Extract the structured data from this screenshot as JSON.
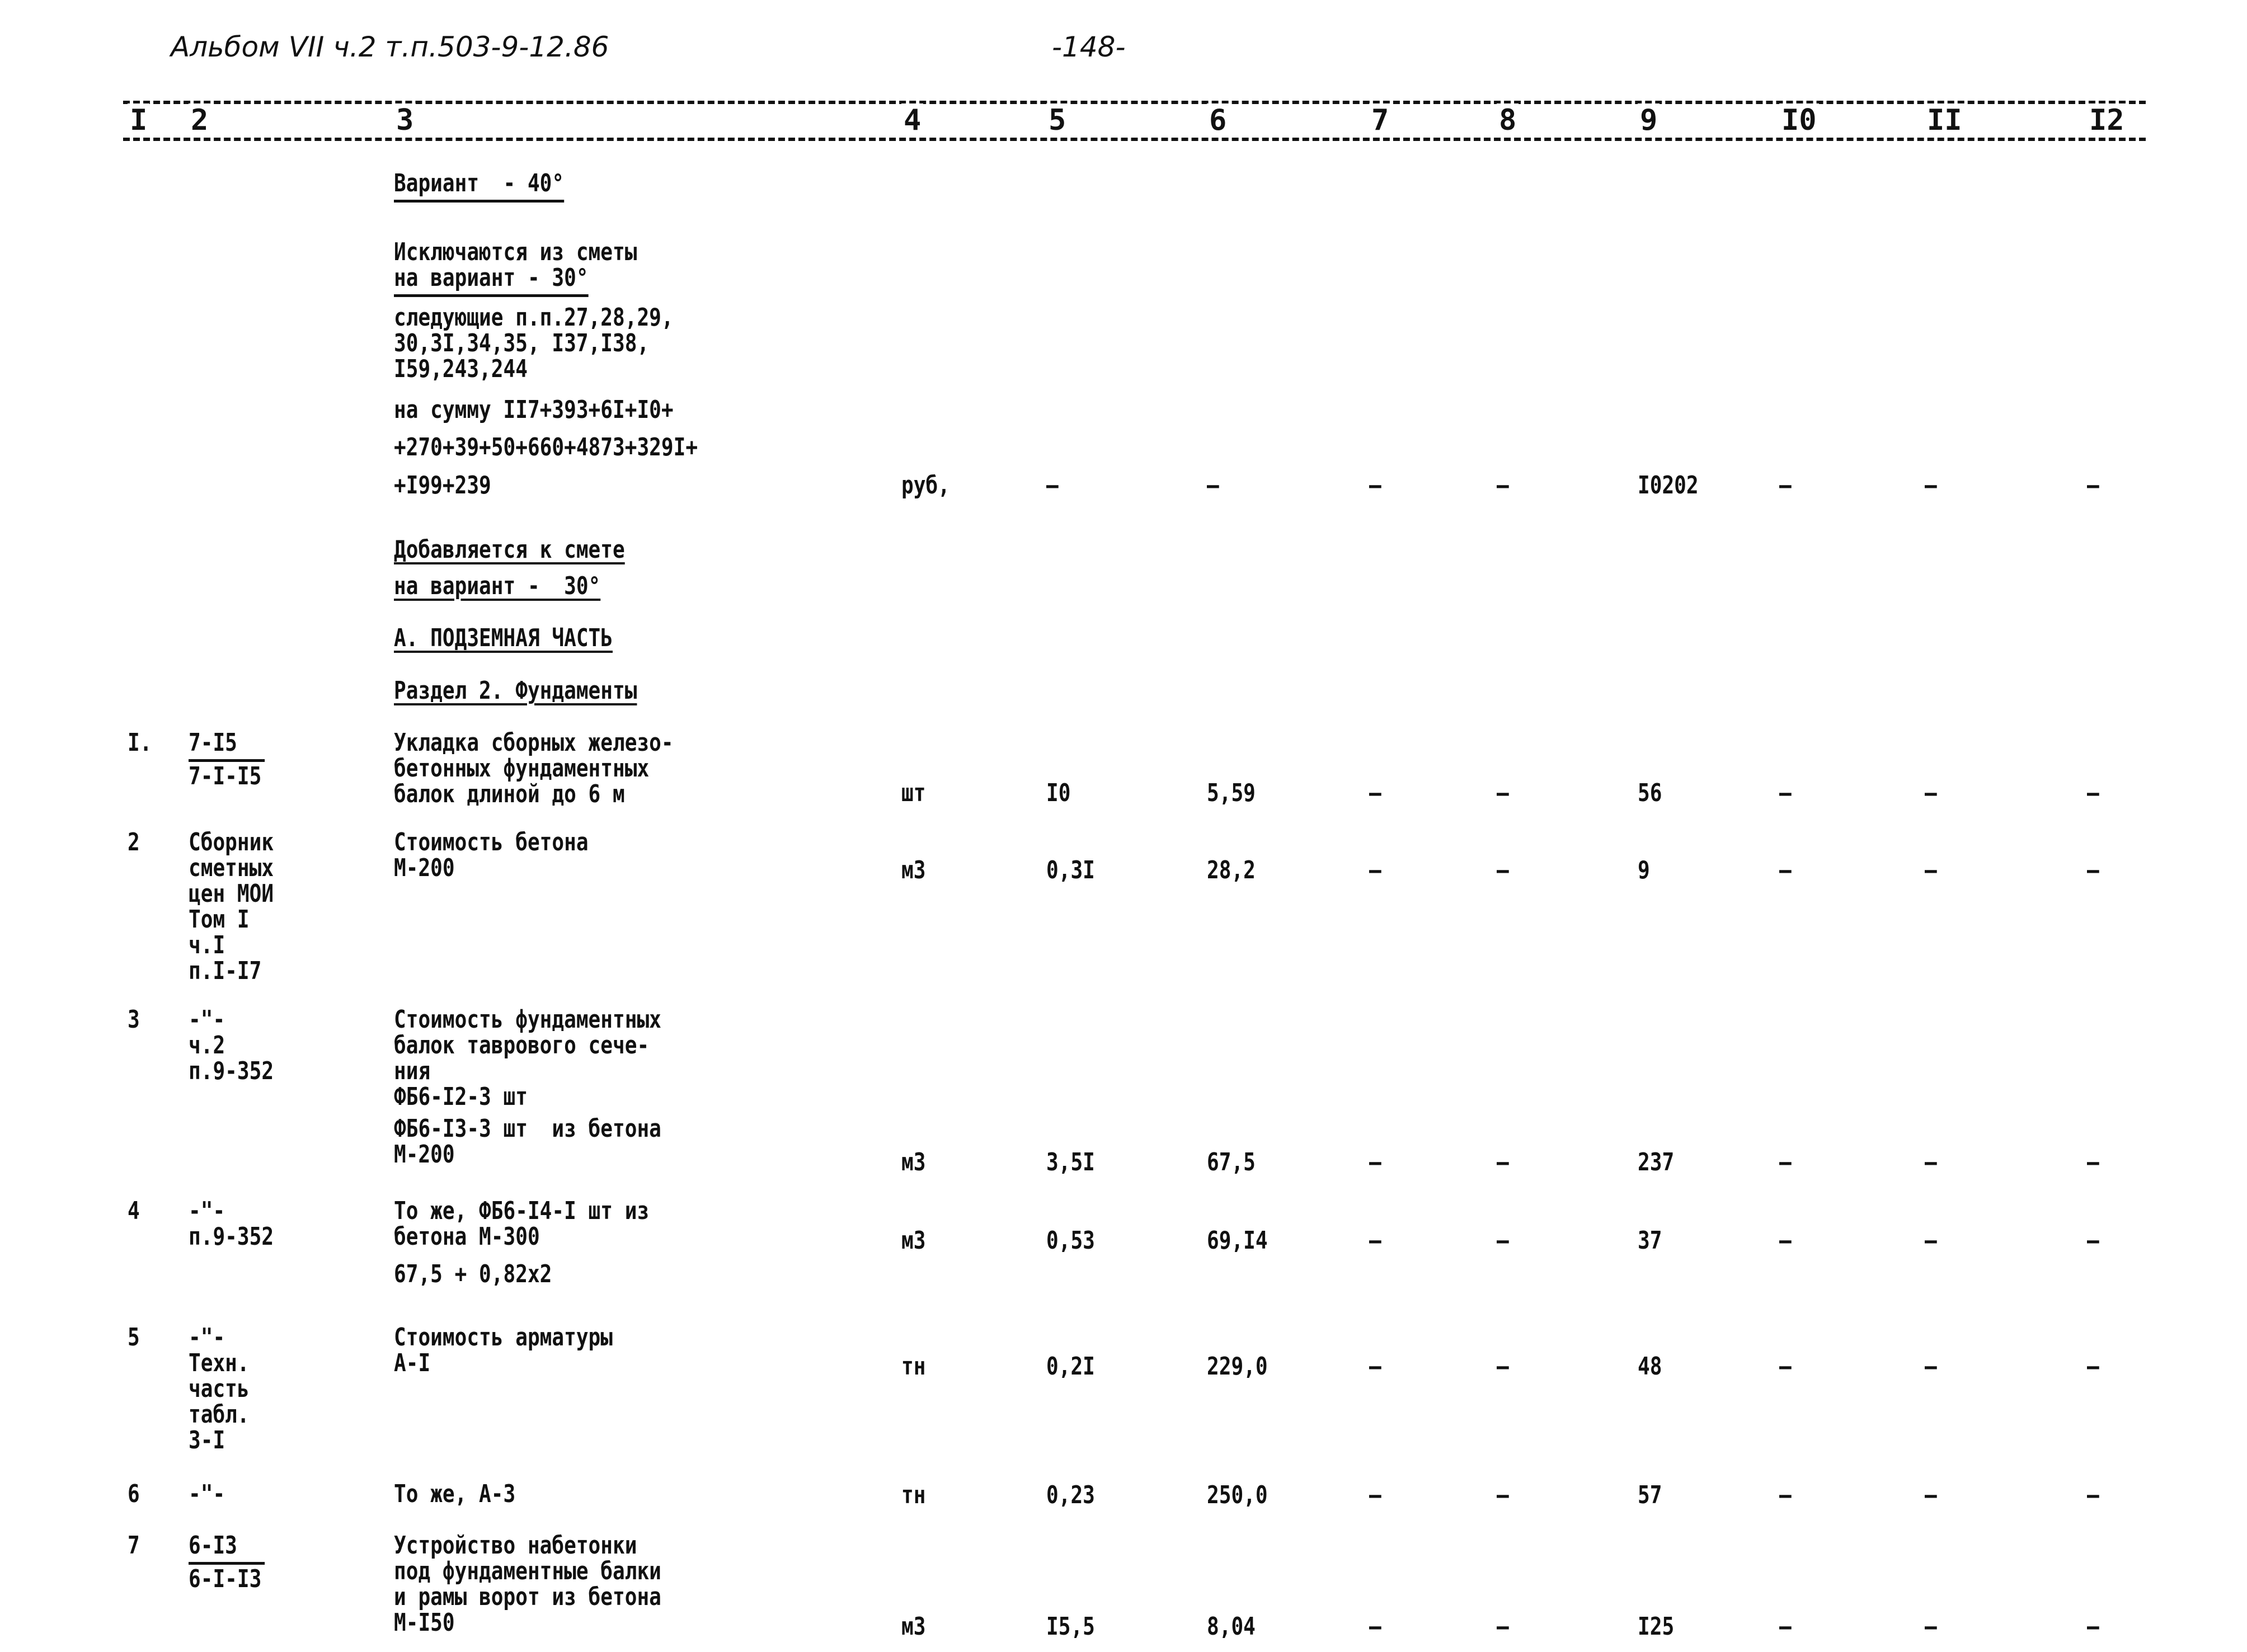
{
  "page_header": {
    "album": "Альбом VII ч.2 т.п.503-9-12.86",
    "page_number": "-148-"
  },
  "columns": [
    "I",
    "2",
    "3",
    "4",
    "5",
    "6",
    "7",
    "8",
    "9",
    "I0",
    "II",
    "I2"
  ],
  "intro": {
    "variant": "Вариант  - 40°",
    "excluded_title_1": "Исключаются из сметы",
    "excluded_title_2": "на вариант - 30°",
    "items_list": "следующие п.п.27,28,29,\n30,3I,34,35, I37,I38,\nI59,243,244",
    "sum_1": "на сумму II7+393+6I+I0+",
    "sum_2": "+270+39+50+660+4873+329I+",
    "sum_3": "+I99+239",
    "sum_row": {
      "unit": "руб,",
      "c5": "–",
      "c6": "–",
      "c7": "–",
      "c8": "–",
      "c9": "I0202",
      "c10": "–",
      "c11": "–",
      "c12": "–"
    },
    "added_title_1": "Добавляется к смете",
    "added_title_2": "на вариант -  30°",
    "part": "А. ПОДЗЕМНАЯ ЧАСТЬ",
    "section": "Раздел 2. Фундаменты"
  },
  "rows": [
    {
      "num": "I.",
      "ref_top": "7-I5",
      "ref": "7-I-I5",
      "desc": "Укладка сборных железо-\nбетонных фундаментных\nбалок длиной до 6 м",
      "unit": "шт",
      "c5": "I0",
      "c6": "5,59",
      "c7": "–",
      "c8": "–",
      "c9": "56",
      "c10": "–",
      "c11": "–",
      "c12": "–"
    },
    {
      "num": "2",
      "ref_top": "",
      "ref": "Сборник\nсметных\nцен МОИ\nТом I\nч.I\nп.I-I7",
      "desc": "Стоимость бетона\nМ-200",
      "unit": "м3",
      "c5": "0,3I",
      "c6": "28,2",
      "c7": "–",
      "c8": "–",
      "c9": "9",
      "c10": "–",
      "c11": "–",
      "c12": "–"
    },
    {
      "num": "3",
      "ref_top": "",
      "ref": "-\"-\nч.2\nп.9-352",
      "desc": "Стоимость фундаментных\nбалок таврового сече-\nния\nФБ6-I2-3 шт",
      "desc2": "ФБ6-I3-3 шт  из бетона\nМ-200",
      "unit": "м3",
      "c5": "3,5I",
      "c6": "67,5",
      "c7": "–",
      "c8": "–",
      "c9": "237",
      "c10": "–",
      "c11": "–",
      "c12": "–"
    },
    {
      "num": "4",
      "ref_top": "",
      "ref": "-\"-\nп.9-352",
      "desc": "То же, ФБ6-I4-I шт из\nбетона М-300",
      "desc2": "67,5 + 0,82х2",
      "unit": "м3",
      "c5": "0,53",
      "c6": "69,I4",
      "c7": "–",
      "c8": "–",
      "c9": "37",
      "c10": "–",
      "c11": "–",
      "c12": "–"
    },
    {
      "num": "5",
      "ref_top": "",
      "ref": "-\"-\nТехн.\nчасть\nтабл.\n3-I",
      "desc": "Стоимость арматуры\nА-I",
      "unit": "тн",
      "c5": "0,2I",
      "c6": "229,0",
      "c7": "–",
      "c8": "–",
      "c9": "48",
      "c10": "–",
      "c11": "–",
      "c12": "–"
    },
    {
      "num": "6",
      "ref_top": "",
      "ref": "-\"-",
      "desc": "То же, А-3",
      "unit": "тн",
      "c5": "0,23",
      "c6": "250,0",
      "c7": "–",
      "c8": "–",
      "c9": "57",
      "c10": "–",
      "c11": "–",
      "c12": "–"
    },
    {
      "num": "7",
      "ref_top": "6-I3",
      "ref": "6-I-I3",
      "desc": "Устройство набетонки\nпод фундаментные балки\nи рамы ворот из бетона\nМ-I50",
      "unit": "м3",
      "c5": "I5,5",
      "c6": "8,04",
      "c7": "–",
      "c8": "–",
      "c9": "I25",
      "c10": "–",
      "c11": "–",
      "c12": "–"
    }
  ]
}
